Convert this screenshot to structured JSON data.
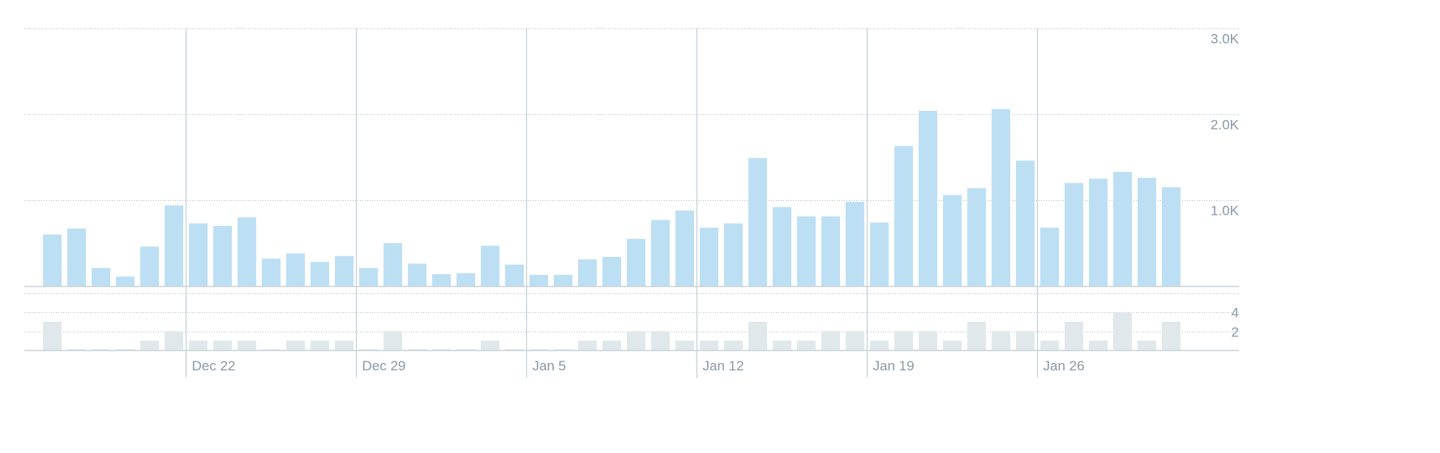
{
  "colors": {
    "main_bar": "#bddff4",
    "secondary_bar": "#e1e8ec",
    "week_line": "#c5d0d8",
    "grid": "#b6c1c9",
    "baseline": "#c9d3da",
    "axis_text": "#8a98a5"
  },
  "chart_data": [
    {
      "type": "bar",
      "panel": "main",
      "x_labels": [
        "Dec 22",
        "Dec 29",
        "Jan 5",
        "Jan 12",
        "Jan 19",
        "Jan 26"
      ],
      "y_tick_labels": [
        "1.0K",
        "2.0K",
        "3.0K"
      ],
      "y_ticks": [
        1000,
        2000,
        3000
      ],
      "ylim": [
        0,
        3000
      ],
      "grid": true,
      "values": [
        600,
        670,
        210,
        110,
        460,
        940,
        730,
        700,
        800,
        320,
        380,
        280,
        350,
        210,
        500,
        260,
        140,
        150,
        470,
        250,
        130,
        130,
        310,
        340,
        550,
        770,
        880,
        680,
        730,
        1490,
        920,
        810,
        810,
        980,
        740,
        1630,
        2040,
        1060,
        1140,
        2060,
        1460,
        680,
        1200,
        1250,
        1330,
        1260,
        1150
      ]
    },
    {
      "type": "bar",
      "panel": "secondary",
      "y_tick_labels": [
        "2",
        "4"
      ],
      "y_ticks": [
        2,
        4
      ],
      "ylim": [
        0,
        6
      ],
      "grid": true,
      "values": [
        3,
        0.1,
        0.1,
        0.1,
        1,
        2,
        1,
        1,
        1,
        0.1,
        1,
        1,
        1,
        0.1,
        2,
        0.1,
        0.1,
        0.1,
        1,
        0.1,
        0.1,
        0.1,
        1,
        1,
        2,
        2,
        1,
        1,
        1,
        3,
        1,
        1,
        2,
        2,
        1,
        2,
        2,
        1,
        3,
        2,
        2,
        1,
        3,
        1,
        4,
        1,
        3
      ]
    }
  ]
}
